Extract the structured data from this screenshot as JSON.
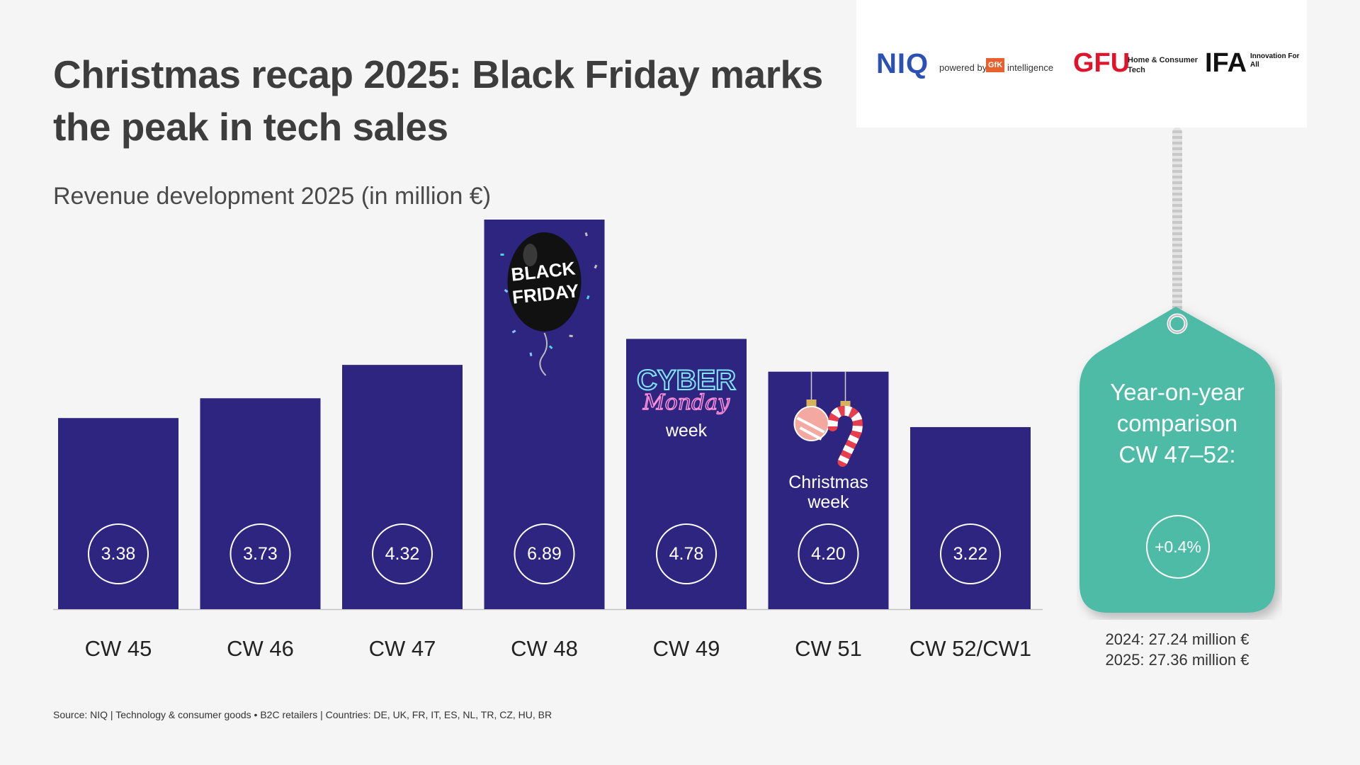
{
  "header": {
    "title": "Christmas recap 2025: Black Friday marks the peak in tech sales",
    "subtitle": "Revenue development 2025 (in million €)"
  },
  "logos": {
    "niq": "NIQ",
    "powered_by": "powered by",
    "gfk": "GfK",
    "intelligence": "intelligence",
    "gfu": "GFU",
    "gfu_tagline": "Home & Consumer Tech",
    "ifa": "IFA",
    "ifa_tagline": "Innovation For All"
  },
  "chart_data": {
    "type": "bar",
    "title": "Revenue development 2025 (in million €)",
    "categories": [
      "CW 45",
      "CW 46",
      "CW 47",
      "CW 48",
      "CW 49",
      "CW 51",
      "CW 52/CW1"
    ],
    "values": [
      3.38,
      3.73,
      4.32,
      6.89,
      4.78,
      4.2,
      3.22
    ],
    "value_labels": [
      "3.38",
      "3.73",
      "4.32",
      "6.89",
      "4.78",
      "4.20",
      "3.22"
    ],
    "ylim": [
      0,
      6.89
    ],
    "bar_color": "#2e2580",
    "annotations": [
      {
        "category": "CW 48",
        "graphic": "black-friday-balloon-icon",
        "text": [
          "BLACK",
          "FRIDAY"
        ]
      },
      {
        "category": "CW 49",
        "graphic": "cyber-monday-neon-icon",
        "text": [
          "CYBER",
          "Monday",
          "week"
        ]
      },
      {
        "category": "CW 51",
        "graphic": "christmas-ornaments-icon",
        "text": [
          "Christmas",
          "week"
        ]
      }
    ]
  },
  "yoy_tag": {
    "title_lines": [
      "Year-on-year",
      "comparison",
      "CW 47–52:"
    ],
    "change": "+0.4%",
    "note_2024": "2024: 27.24 million €",
    "note_2025": "2025: 27.36 million €",
    "color": "#4dbba6"
  },
  "footer": {
    "source": "Source: NIQ | Technology & consumer goods • B2C retailers | Countries: DE, UK, FR, IT, ES, NL, TR, CZ, HU, BR"
  }
}
